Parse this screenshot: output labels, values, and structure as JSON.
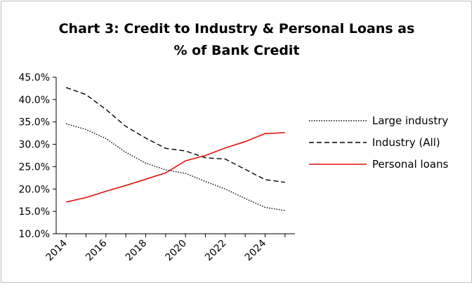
{
  "chart_data": {
    "type": "line",
    "title_line1": "Chart 3: Credit to Industry & Personal Loans as",
    "title_line2": "% of Bank Credit",
    "x": [
      2014,
      2015,
      2016,
      2017,
      2018,
      2019,
      2020,
      2021,
      2022,
      2023,
      2024,
      2025
    ],
    "x_tick_labels": [
      "2014",
      "2016",
      "2018",
      "2020",
      "2022",
      "2024"
    ],
    "x_tick_values": [
      2014,
      2016,
      2018,
      2020,
      2022,
      2024
    ],
    "y_tick_labels": [
      "45.0%",
      "40.0%",
      "35.0%",
      "30.0%",
      "25.0%",
      "20.0%",
      "15.0%",
      "10.0%"
    ],
    "y_tick_values": [
      45,
      40,
      35,
      30,
      25,
      20,
      15,
      10
    ],
    "ylim": [
      10,
      45
    ],
    "xlim": [
      2013.5,
      2025.5
    ],
    "grid": false,
    "legend_position": "right",
    "series": [
      {
        "name": "Large industry",
        "style": "dotted",
        "color": "#000000",
        "values": [
          34.6,
          33.3,
          31.3,
          28.2,
          25.8,
          24.3,
          23.5,
          21.7,
          20.0,
          17.9,
          15.9,
          15.2
        ]
      },
      {
        "name": "Industry (All)",
        "style": "dashed",
        "color": "#000000",
        "values": [
          42.7,
          41.1,
          37.8,
          34.0,
          31.4,
          29.1,
          28.5,
          27.0,
          26.7,
          24.4,
          22.1,
          21.5
        ]
      },
      {
        "name": "Personal loans",
        "style": "solid",
        "color": "#e3120b",
        "values": [
          17.1,
          18.1,
          19.5,
          20.8,
          22.2,
          23.6,
          26.3,
          27.5,
          29.2,
          30.6,
          32.4,
          32.6
        ]
      }
    ]
  }
}
